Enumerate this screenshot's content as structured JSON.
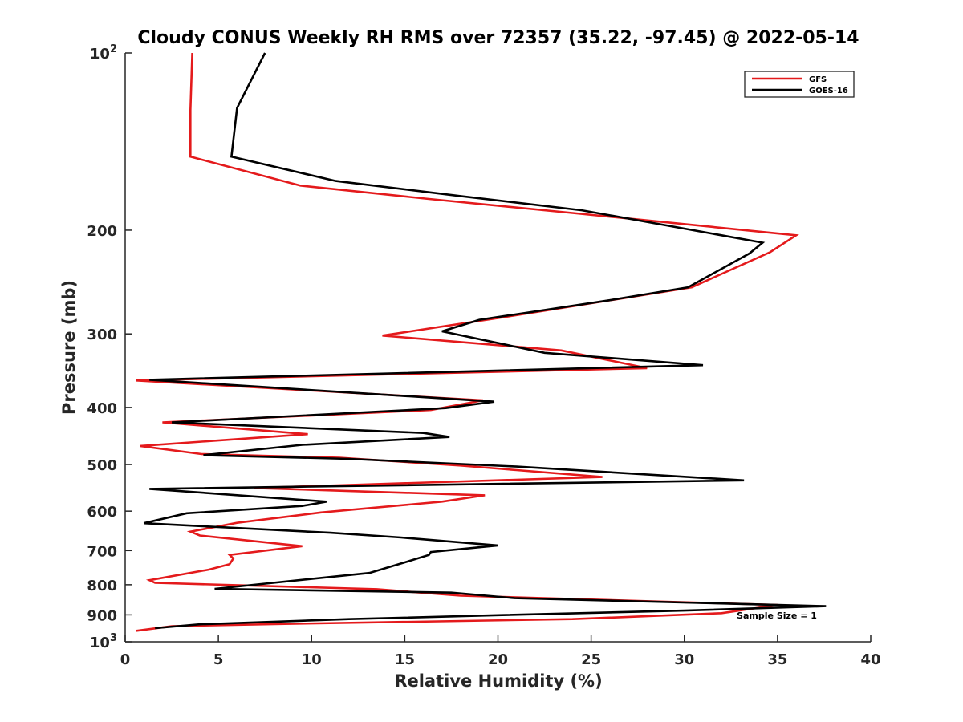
{
  "chart_data": {
    "type": "line",
    "title": "Cloudy CONUS Weekly RH RMS over 72357 (35.22, -97.45) @ 2022-05-14",
    "xlabel": "Relative Humidity (%)",
    "ylabel": "Pressure (mb)",
    "xlim": [
      0,
      40
    ],
    "ylim": [
      100,
      1000
    ],
    "y_scale": "log",
    "y_reversed": true,
    "grid": false,
    "legend_position": "top-right",
    "x_ticks": [
      "0",
      "5",
      "10",
      "15",
      "20",
      "25",
      "30",
      "35",
      "40"
    ],
    "y_ticks": [
      {
        "value": 100,
        "base": "10",
        "exp": "2"
      },
      {
        "value": 200,
        "label": "200"
      },
      {
        "value": 300,
        "label": "300"
      },
      {
        "value": 400,
        "label": "400"
      },
      {
        "value": 500,
        "label": "500"
      },
      {
        "value": 600,
        "label": "600"
      },
      {
        "value": 700,
        "label": "700"
      },
      {
        "value": 800,
        "label": "800"
      },
      {
        "value": 900,
        "label": "900"
      },
      {
        "value": 1000,
        "base": "10",
        "exp": "3"
      }
    ],
    "annotation": "Sample Size = 1",
    "series": [
      {
        "name": "GFS",
        "color": "#e41a1c",
        "points": [
          [
            3.6,
            100
          ],
          [
            3.5,
            125
          ],
          [
            3.5,
            150
          ],
          [
            9.4,
            168
          ],
          [
            16.3,
            177
          ],
          [
            24.0,
            187
          ],
          [
            36.0,
            204
          ],
          [
            34.6,
            218
          ],
          [
            30.4,
            250
          ],
          [
            20.0,
            282
          ],
          [
            13.8,
            302
          ],
          [
            23.4,
            320
          ],
          [
            28.0,
            343
          ],
          [
            0.6,
            360
          ],
          [
            19.2,
            389
          ],
          [
            16.4,
            404
          ],
          [
            2.0,
            424
          ],
          [
            9.8,
            444
          ],
          [
            0.8,
            465
          ],
          [
            4.1,
            480
          ],
          [
            11.5,
            487
          ],
          [
            18.0,
            502
          ],
          [
            21.0,
            511
          ],
          [
            25.6,
            525
          ],
          [
            6.9,
            548
          ],
          [
            19.3,
            564
          ],
          [
            17.0,
            578
          ],
          [
            10.5,
            603
          ],
          [
            6.0,
            628
          ],
          [
            3.5,
            650
          ],
          [
            4.0,
            660
          ],
          [
            9.5,
            688
          ],
          [
            5.6,
            712
          ],
          [
            5.8,
            722
          ],
          [
            5.6,
            738
          ],
          [
            4.5,
            754
          ],
          [
            1.3,
            786
          ],
          [
            1.6,
            794
          ],
          [
            13.5,
            814
          ],
          [
            18.0,
            835
          ],
          [
            35.0,
            866
          ],
          [
            32.0,
            894
          ],
          [
            24.0,
            915
          ],
          [
            8.0,
            933
          ],
          [
            2.5,
            941
          ],
          [
            0.6,
            958
          ]
        ]
      },
      {
        "name": "GOES-16",
        "color": "#000000",
        "points": [
          [
            7.5,
            100
          ],
          [
            6.0,
            124
          ],
          [
            5.7,
            150
          ],
          [
            11.3,
            165
          ],
          [
            18.0,
            175
          ],
          [
            24.5,
            185
          ],
          [
            34.2,
            210
          ],
          [
            33.5,
            219
          ],
          [
            30.2,
            250
          ],
          [
            26.0,
            263
          ],
          [
            19.0,
            284
          ],
          [
            17.0,
            297
          ],
          [
            22.5,
            323
          ],
          [
            31.0,
            339
          ],
          [
            1.3,
            359
          ],
          [
            19.8,
            391
          ],
          [
            17.2,
            401
          ],
          [
            2.5,
            424
          ],
          [
            16.0,
            442
          ],
          [
            17.4,
            449
          ],
          [
            9.5,
            463
          ],
          [
            4.2,
            482
          ],
          [
            12.0,
            489
          ],
          [
            21.0,
            504
          ],
          [
            33.2,
            532
          ],
          [
            1.3,
            550
          ],
          [
            10.8,
            578
          ],
          [
            9.5,
            588
          ],
          [
            3.3,
            605
          ],
          [
            1.0,
            629
          ],
          [
            11.0,
            653
          ],
          [
            14.8,
            665
          ],
          [
            20.0,
            686
          ],
          [
            16.4,
            704
          ],
          [
            16.3,
            712
          ],
          [
            15.0,
            733
          ],
          [
            13.1,
            764
          ],
          [
            4.8,
            813
          ],
          [
            17.5,
            825
          ],
          [
            20.9,
            843
          ],
          [
            37.6,
            870
          ],
          [
            30.0,
            885
          ],
          [
            20.0,
            901
          ],
          [
            12.0,
            915
          ],
          [
            4.0,
            934
          ],
          [
            1.6,
            948
          ]
        ]
      }
    ]
  }
}
